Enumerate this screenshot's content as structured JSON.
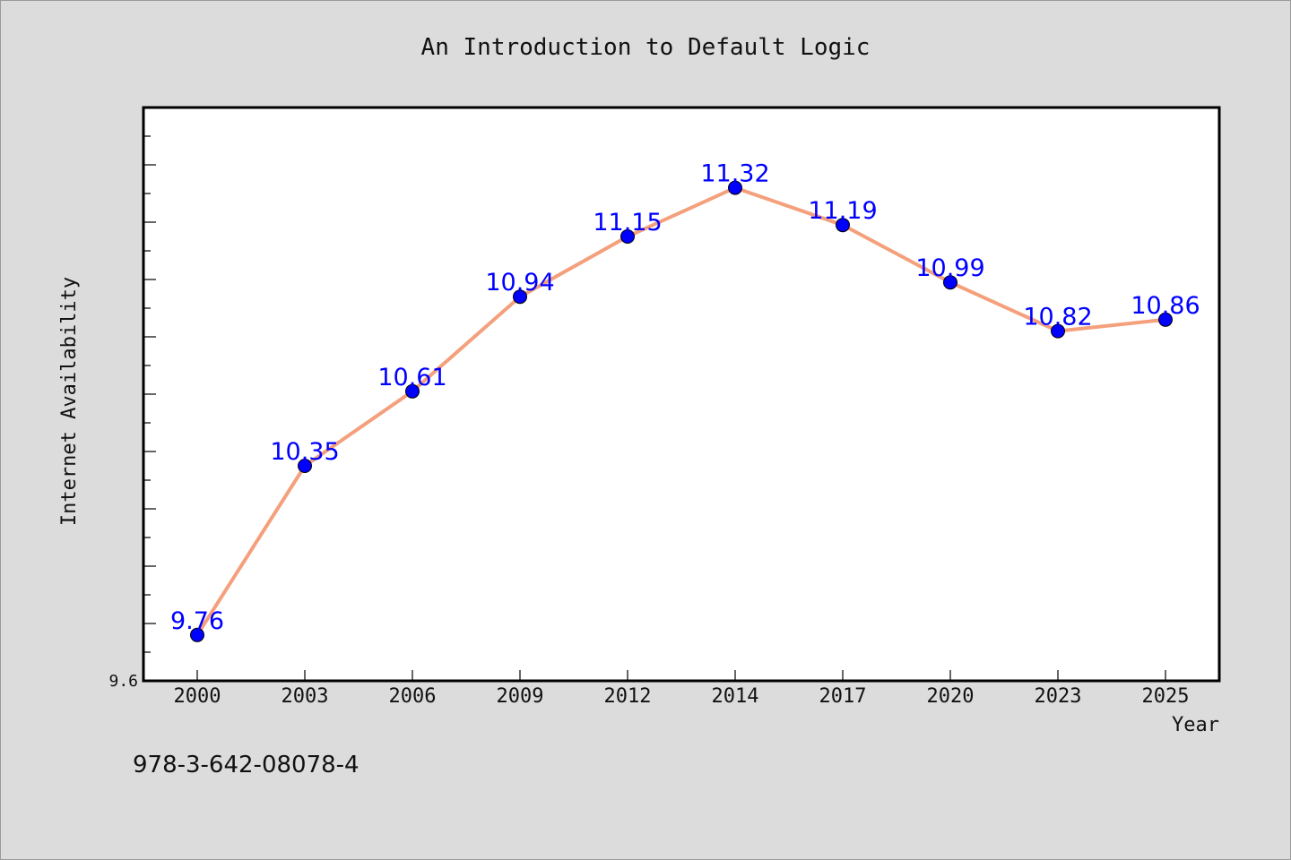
{
  "chart_data": {
    "type": "line",
    "title": "An Introduction to Default Logic",
    "xlabel": "Year",
    "ylabel": "Internet Availability",
    "x": [
      "2000",
      "2003",
      "2006",
      "2009",
      "2012",
      "2014",
      "2017",
      "2020",
      "2023",
      "2025"
    ],
    "series": [
      {
        "values": [
          9.76,
          10.35,
          10.61,
          10.94,
          11.15,
          11.32,
          11.19,
          10.99,
          10.82,
          10.86
        ],
        "data_labels": [
          "9.76",
          "10.35",
          "10.61",
          "10.94",
          "11.15",
          "11.32",
          "11.19",
          "10.99",
          "10.82",
          "10.86"
        ]
      }
    ],
    "ylim": [
      9.6,
      11.6
    ],
    "yticks_labeled": [
      "9.6"
    ],
    "grid": false,
    "legend": "none",
    "colors": {
      "line": "#f4a07c",
      "marker": "#0000ff",
      "data_label": "#0000ff",
      "plot_bg": "#ffffff",
      "page_bg": "#dcdcdc"
    }
  },
  "footer": {
    "isbn": "978-3-642-08078-4"
  }
}
